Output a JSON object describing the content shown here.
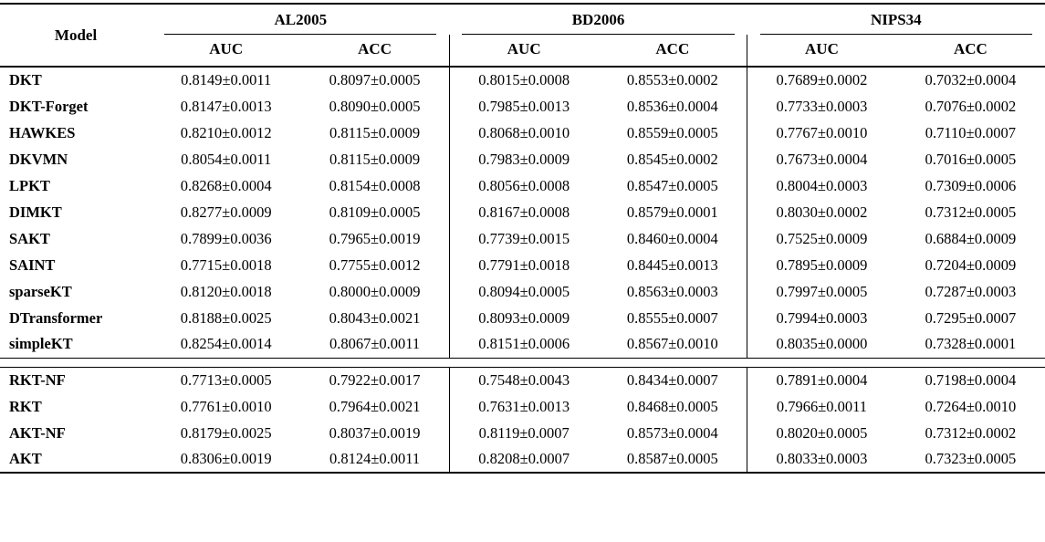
{
  "table": {
    "header": {
      "model_label": "Model",
      "groups": [
        {
          "name": "AL2005",
          "sub": [
            "AUC",
            "ACC"
          ]
        },
        {
          "name": "BD2006",
          "sub": [
            "AUC",
            "ACC"
          ]
        },
        {
          "name": "NIPS34",
          "sub": [
            "AUC",
            "ACC"
          ]
        }
      ]
    },
    "sections": [
      {
        "rows": [
          {
            "model": "DKT",
            "values": [
              "0.8149±0.0011",
              "0.8097±0.0005",
              "0.8015±0.0008",
              "0.8553±0.0002",
              "0.7689±0.0002",
              "0.7032±0.0004"
            ]
          },
          {
            "model": "DKT-Forget",
            "values": [
              "0.8147±0.0013",
              "0.8090±0.0005",
              "0.7985±0.0013",
              "0.8536±0.0004",
              "0.7733±0.0003",
              "0.7076±0.0002"
            ]
          },
          {
            "model": "HAWKES",
            "values": [
              "0.8210±0.0012",
              "0.8115±0.0009",
              "0.8068±0.0010",
              "0.8559±0.0005",
              "0.7767±0.0010",
              "0.7110±0.0007"
            ]
          },
          {
            "model": "DKVMN",
            "values": [
              "0.8054±0.0011",
              "0.8115±0.0009",
              "0.7983±0.0009",
              "0.8545±0.0002",
              "0.7673±0.0004",
              "0.7016±0.0005"
            ]
          },
          {
            "model": "LPKT",
            "values": [
              "0.8268±0.0004",
              "0.8154±0.0008",
              "0.8056±0.0008",
              "0.8547±0.0005",
              "0.8004±0.0003",
              "0.7309±0.0006"
            ]
          },
          {
            "model": "DIMKT",
            "values": [
              "0.8277±0.0009",
              "0.8109±0.0005",
              "0.8167±0.0008",
              "0.8579±0.0001",
              "0.8030±0.0002",
              "0.7312±0.0005"
            ]
          },
          {
            "model": "SAKT",
            "values": [
              "0.7899±0.0036",
              "0.7965±0.0019",
              "0.7739±0.0015",
              "0.8460±0.0004",
              "0.7525±0.0009",
              "0.6884±0.0009"
            ]
          },
          {
            "model": "SAINT",
            "values": [
              "0.7715±0.0018",
              "0.7755±0.0012",
              "0.7791±0.0018",
              "0.8445±0.0013",
              "0.7895±0.0009",
              "0.7204±0.0009"
            ]
          },
          {
            "model": "sparseKT",
            "values": [
              "0.8120±0.0018",
              "0.8000±0.0009",
              "0.8094±0.0005",
              "0.8563±0.0003",
              "0.7997±0.0005",
              "0.7287±0.0003"
            ]
          },
          {
            "model": "DTransformer",
            "values": [
              "0.8188±0.0025",
              "0.8043±0.0021",
              "0.8093±0.0009",
              "0.8555±0.0007",
              "0.7994±0.0003",
              "0.7295±0.0007"
            ]
          },
          {
            "model": "simpleKT",
            "values": [
              "0.8254±0.0014",
              "0.8067±0.0011",
              "0.8151±0.0006",
              "0.8567±0.0010",
              "0.8035±0.0000",
              "0.7328±0.0001"
            ]
          }
        ]
      },
      {
        "rows": [
          {
            "model": "RKT-NF",
            "values": [
              "0.7713±0.0005",
              "0.7922±0.0017",
              "0.7548±0.0043",
              "0.8434±0.0007",
              "0.7891±0.0004",
              "0.7198±0.0004"
            ]
          },
          {
            "model": "RKT",
            "values": [
              "0.7761±0.0010",
              "0.7964±0.0021",
              "0.7631±0.0013",
              "0.8468±0.0005",
              "0.7966±0.0011",
              "0.7264±0.0010"
            ]
          },
          {
            "model": "AKT-NF",
            "values": [
              "0.8179±0.0025",
              "0.8037±0.0019",
              "0.8119±0.0007",
              "0.8573±0.0004",
              "0.8020±0.0005",
              "0.7312±0.0002"
            ]
          },
          {
            "model": "AKT",
            "values": [
              "0.8306±0.0019",
              "0.8124±0.0011",
              "0.8208±0.0007",
              "0.8587±0.0005",
              "0.8033±0.0003",
              "0.7323±0.0005"
            ]
          }
        ]
      }
    ]
  }
}
